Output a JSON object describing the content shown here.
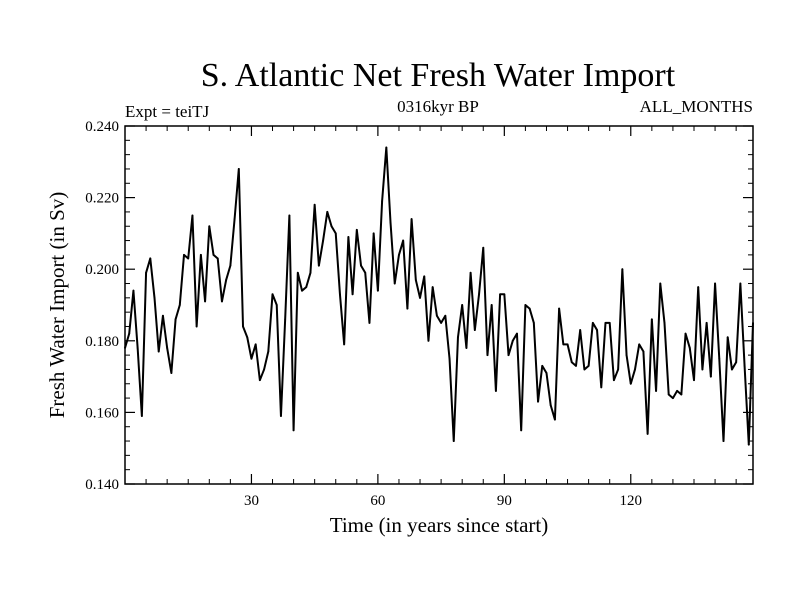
{
  "chart_data": {
    "type": "line",
    "title": "S. Atlantic Net Fresh Water Import",
    "subtitle": "0316kyr BP",
    "left_label": "Expt = teiTJ",
    "right_label": "ALL_MONTHS",
    "xlabel": "Time (in years since start)",
    "ylabel": "Fresh Water Import (in Sv)",
    "xlim": [
      0,
      149
    ],
    "ylim": [
      0.14,
      0.24
    ],
    "xticks": [
      30,
      60,
      90,
      120
    ],
    "xtick_labels": [
      "30",
      "60",
      "90",
      "120"
    ],
    "yticks": [
      0.14,
      0.16,
      0.18,
      0.2,
      0.22,
      0.24
    ],
    "ytick_labels": [
      "0.140",
      "0.160",
      "0.180",
      "0.200",
      "0.220",
      "0.240"
    ],
    "x_start": 0,
    "x_step": 1,
    "values": [
      0.178,
      0.182,
      0.194,
      0.178,
      0.159,
      0.199,
      0.203,
      0.192,
      0.177,
      0.187,
      0.178,
      0.171,
      0.186,
      0.19,
      0.204,
      0.203,
      0.215,
      0.184,
      0.204,
      0.191,
      0.212,
      0.204,
      0.203,
      0.191,
      0.197,
      0.201,
      0.214,
      0.228,
      0.184,
      0.181,
      0.175,
      0.179,
      0.169,
      0.172,
      0.177,
      0.193,
      0.19,
      0.159,
      0.186,
      0.215,
      0.155,
      0.199,
      0.194,
      0.195,
      0.199,
      0.218,
      0.201,
      0.208,
      0.216,
      0.212,
      0.21,
      0.193,
      0.179,
      0.209,
      0.193,
      0.211,
      0.201,
      0.199,
      0.185,
      0.21,
      0.194,
      0.219,
      0.234,
      0.213,
      0.196,
      0.204,
      0.208,
      0.189,
      0.214,
      0.197,
      0.192,
      0.198,
      0.18,
      0.195,
      0.187,
      0.185,
      0.187,
      0.175,
      0.152,
      0.181,
      0.19,
      0.178,
      0.199,
      0.183,
      0.193,
      0.206,
      0.176,
      0.19,
      0.166,
      0.193,
      0.193,
      0.176,
      0.18,
      0.182,
      0.155,
      0.19,
      0.189,
      0.185,
      0.163,
      0.173,
      0.171,
      0.162,
      0.158,
      0.189,
      0.179,
      0.179,
      0.174,
      0.173,
      0.183,
      0.172,
      0.173,
      0.185,
      0.183,
      0.167,
      0.185,
      0.185,
      0.169,
      0.172,
      0.2,
      0.176,
      0.168,
      0.172,
      0.179,
      0.177,
      0.154,
      0.186,
      0.166,
      0.196,
      0.185,
      0.165,
      0.164,
      0.166,
      0.165,
      0.182,
      0.178,
      0.169,
      0.195,
      0.172,
      0.185,
      0.17,
      0.196,
      0.175,
      0.152,
      0.181,
      0.172,
      0.174,
      0.196,
      0.173,
      0.151,
      0.185
    ],
    "line_color": "#000000",
    "grid": false
  }
}
